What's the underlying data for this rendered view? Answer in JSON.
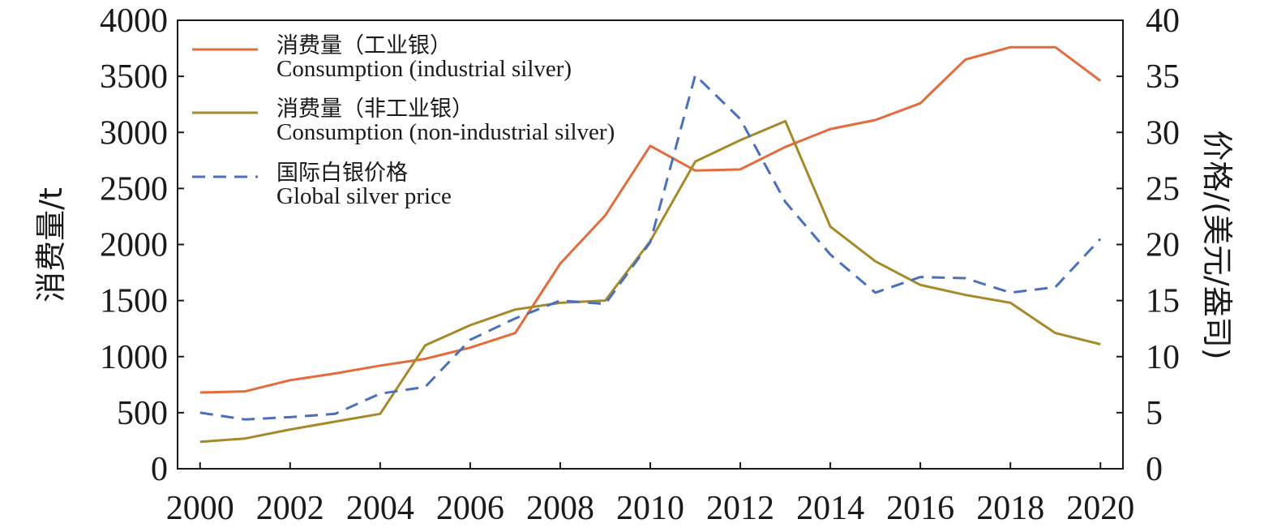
{
  "chart_data": {
    "type": "line",
    "title": "",
    "x": [
      2000,
      2001,
      2002,
      2003,
      2004,
      2005,
      2006,
      2007,
      2008,
      2009,
      2010,
      2011,
      2012,
      2013,
      2014,
      2015,
      2016,
      2017,
      2018,
      2019,
      2020
    ],
    "x_ticks": [
      "2000",
      "2002",
      "2004",
      "2006",
      "2008",
      "2010",
      "2012",
      "2014",
      "2016",
      "2018",
      "2020"
    ],
    "xlim": [
      1999.5,
      2020.5
    ],
    "ylabel": "消费量/t",
    "ylim": [
      0,
      4000
    ],
    "y_ticks": [
      "0",
      "500",
      "1000",
      "1500",
      "2000",
      "2500",
      "3000",
      "3500",
      "4000"
    ],
    "y2label": "价格/(美元/盎司)",
    "y2lim": [
      0,
      40
    ],
    "y2_ticks": [
      "0",
      "5",
      "10",
      "15",
      "20",
      "25",
      "30",
      "35",
      "40"
    ],
    "legend_position": "top-left",
    "grid": false,
    "series": [
      {
        "name_cn": "消费量（工业银）",
        "name_en": "Consumption (industrial silver)",
        "axis": "left",
        "color": "#E46B3B",
        "dash": "solid",
        "values": [
          680,
          690,
          790,
          850,
          920,
          980,
          1080,
          1210,
          1830,
          2260,
          2880,
          2660,
          2670,
          2870,
          3030,
          3110,
          3260,
          3650,
          3760,
          3760,
          3460
        ]
      },
      {
        "name_cn": "消费量（非工业银）",
        "name_en": "Consumption (non-industrial silver)",
        "axis": "left",
        "color": "#A68A2A",
        "dash": "solid",
        "values": [
          240,
          270,
          350,
          420,
          490,
          1100,
          1280,
          1420,
          1480,
          1500,
          2030,
          2740,
          2930,
          3100,
          2160,
          1850,
          1640,
          1550,
          1480,
          1210,
          1110
        ]
      },
      {
        "name_cn": "国际白银价格",
        "name_en": "Global silver price",
        "axis": "right",
        "color": "#4A6FBF",
        "dash": "dashed",
        "values": [
          5.0,
          4.4,
          4.6,
          4.9,
          6.7,
          7.3,
          11.5,
          13.4,
          15.0,
          14.7,
          20.2,
          35.1,
          31.2,
          23.8,
          19.1,
          15.7,
          17.1,
          17.0,
          15.7,
          16.2,
          20.5
        ]
      }
    ]
  }
}
